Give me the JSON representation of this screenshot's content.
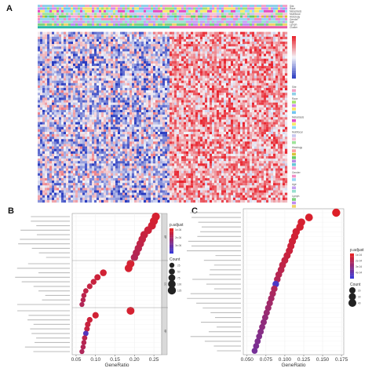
{
  "panel_letters": [
    "A",
    "B",
    "C"
  ],
  "colors": {
    "heat_high": "#e8202a",
    "heat_low": "#2a3cc0",
    "heat_mid": "#f4f4f8",
    "dot_high": "#e61e1e",
    "dot_low": "#3a3ad8"
  },
  "heatmap": {
    "annotation_tracks": [
      "Site",
      "Race",
      "Metastasis",
      "Multifocal",
      "Histology",
      "Gender",
      "Age",
      "Lymph",
      "Cluster"
    ],
    "legend_titles": [
      "Site",
      "Race",
      "Metastasis",
      "Multifocal",
      "Histology",
      "Gender",
      "Age",
      "Lymph",
      "Cluster"
    ],
    "cluster_levels": [
      "Cluster1",
      "Cluster2"
    ]
  },
  "chart_data": [
    {
      "type": "scatter",
      "panel": "B",
      "xlabel": "GeneRatio",
      "x_ticks": [
        "0.05",
        "0.10",
        "0.15",
        "0.20",
        "0.25"
      ],
      "xlim": [
        0.04,
        0.27
      ],
      "groups": [
        "BP",
        "CC",
        "MF"
      ],
      "legend_color_title": "p.adjust",
      "legend_color_ticks": [
        "1e-06",
        "2e-06",
        "3e-06"
      ],
      "legend_size_title": "Count",
      "legend_size_values": [
        "25",
        "50",
        "75",
        "100",
        "125"
      ],
      "points": [
        {
          "group": "BP",
          "x": 0.255,
          "padj": 0.1,
          "count": 120
        },
        {
          "group": "BP",
          "x": 0.25,
          "padj": 0.1,
          "count": 118
        },
        {
          "group": "BP",
          "x": 0.245,
          "padj": 0.12,
          "count": 115
        },
        {
          "group": "BP",
          "x": 0.235,
          "padj": 0.15,
          "count": 110
        },
        {
          "group": "BP",
          "x": 0.225,
          "padj": 0.18,
          "count": 105
        },
        {
          "group": "BP",
          "x": 0.22,
          "padj": 0.2,
          "count": 100
        },
        {
          "group": "BP",
          "x": 0.215,
          "padj": 0.22,
          "count": 98
        },
        {
          "group": "BP",
          "x": 0.21,
          "padj": 0.25,
          "count": 95
        },
        {
          "group": "BP",
          "x": 0.205,
          "padj": 0.28,
          "count": 92
        },
        {
          "group": "BP",
          "x": 0.2,
          "padj": 0.3,
          "count": 90
        },
        {
          "group": "CC",
          "x": 0.19,
          "padj": 0.1,
          "count": 110
        },
        {
          "group": "CC",
          "x": 0.185,
          "padj": 0.1,
          "count": 108
        },
        {
          "group": "CC",
          "x": 0.12,
          "padj": 0.12,
          "count": 70
        },
        {
          "group": "CC",
          "x": 0.105,
          "padj": 0.15,
          "count": 55
        },
        {
          "group": "CC",
          "x": 0.095,
          "padj": 0.18,
          "count": 45
        },
        {
          "group": "CC",
          "x": 0.085,
          "padj": 0.2,
          "count": 38
        },
        {
          "group": "CC",
          "x": 0.075,
          "padj": 0.22,
          "count": 30
        },
        {
          "group": "CC",
          "x": 0.07,
          "padj": 0.25,
          "count": 28
        },
        {
          "group": "CC",
          "x": 0.068,
          "padj": 0.28,
          "count": 26
        },
        {
          "group": "CC",
          "x": 0.065,
          "padj": 0.3,
          "count": 24
        },
        {
          "group": "MF",
          "x": 0.19,
          "padj": 0.1,
          "count": 110
        },
        {
          "group": "MF",
          "x": 0.1,
          "padj": 0.12,
          "count": 60
        },
        {
          "group": "MF",
          "x": 0.085,
          "padj": 0.15,
          "count": 42
        },
        {
          "group": "MF",
          "x": 0.08,
          "padj": 0.18,
          "count": 38
        },
        {
          "group": "MF",
          "x": 0.078,
          "padj": 0.2,
          "count": 36
        },
        {
          "group": "MF",
          "x": 0.075,
          "padj": 0.85,
          "count": 34
        },
        {
          "group": "MF",
          "x": 0.072,
          "padj": 0.25,
          "count": 30
        },
        {
          "group": "MF",
          "x": 0.07,
          "padj": 0.28,
          "count": 28
        },
        {
          "group": "MF",
          "x": 0.068,
          "padj": 0.3,
          "count": 26
        },
        {
          "group": "MF",
          "x": 0.065,
          "padj": 0.32,
          "count": 24
        }
      ]
    },
    {
      "type": "scatter",
      "panel": "C",
      "xlabel": "GeneRatio",
      "x_ticks": [
        "0.050",
        "0.075",
        "0.100",
        "0.125",
        "0.150",
        "0.175"
      ],
      "xlim": [
        0.045,
        0.178
      ],
      "legend_color_title": "p.adjust",
      "legend_color_ticks": [
        "1e-04",
        "2e-04",
        "3e-04",
        "4e-04"
      ],
      "legend_size_title": "Count",
      "legend_size_values": [
        "20",
        "30",
        "40"
      ],
      "points": [
        {
          "x": 0.168,
          "padj": 0.05,
          "count": 45
        },
        {
          "x": 0.132,
          "padj": 0.08,
          "count": 38
        },
        {
          "x": 0.122,
          "padj": 0.1,
          "count": 36
        },
        {
          "x": 0.12,
          "padj": 0.1,
          "count": 35
        },
        {
          "x": 0.115,
          "padj": 0.12,
          "count": 34
        },
        {
          "x": 0.113,
          "padj": 0.12,
          "count": 33
        },
        {
          "x": 0.11,
          "padj": 0.14,
          "count": 32
        },
        {
          "x": 0.108,
          "padj": 0.15,
          "count": 31
        },
        {
          "x": 0.106,
          "padj": 0.16,
          "count": 30
        },
        {
          "x": 0.103,
          "padj": 0.18,
          "count": 29
        },
        {
          "x": 0.1,
          "padj": 0.2,
          "count": 28
        },
        {
          "x": 0.097,
          "padj": 0.22,
          "count": 27
        },
        {
          "x": 0.095,
          "padj": 0.25,
          "count": 26
        },
        {
          "x": 0.092,
          "padj": 0.28,
          "count": 25
        },
        {
          "x": 0.09,
          "padj": 0.3,
          "count": 24
        },
        {
          "x": 0.088,
          "padj": 0.9,
          "count": 24
        },
        {
          "x": 0.086,
          "padj": 0.32,
          "count": 23
        },
        {
          "x": 0.084,
          "padj": 0.35,
          "count": 22
        },
        {
          "x": 0.082,
          "padj": 0.38,
          "count": 22
        },
        {
          "x": 0.08,
          "padj": 0.4,
          "count": 21
        },
        {
          "x": 0.078,
          "padj": 0.42,
          "count": 21
        },
        {
          "x": 0.076,
          "padj": 0.45,
          "count": 20
        },
        {
          "x": 0.074,
          "padj": 0.48,
          "count": 20
        },
        {
          "x": 0.072,
          "padj": 0.5,
          "count": 20
        },
        {
          "x": 0.07,
          "padj": 0.52,
          "count": 19
        },
        {
          "x": 0.068,
          "padj": 0.55,
          "count": 19
        },
        {
          "x": 0.066,
          "padj": 0.58,
          "count": 18
        },
        {
          "x": 0.064,
          "padj": 0.6,
          "count": 18
        },
        {
          "x": 0.062,
          "padj": 0.62,
          "count": 18
        },
        {
          "x": 0.06,
          "padj": 0.65,
          "count": 17
        }
      ]
    }
  ]
}
